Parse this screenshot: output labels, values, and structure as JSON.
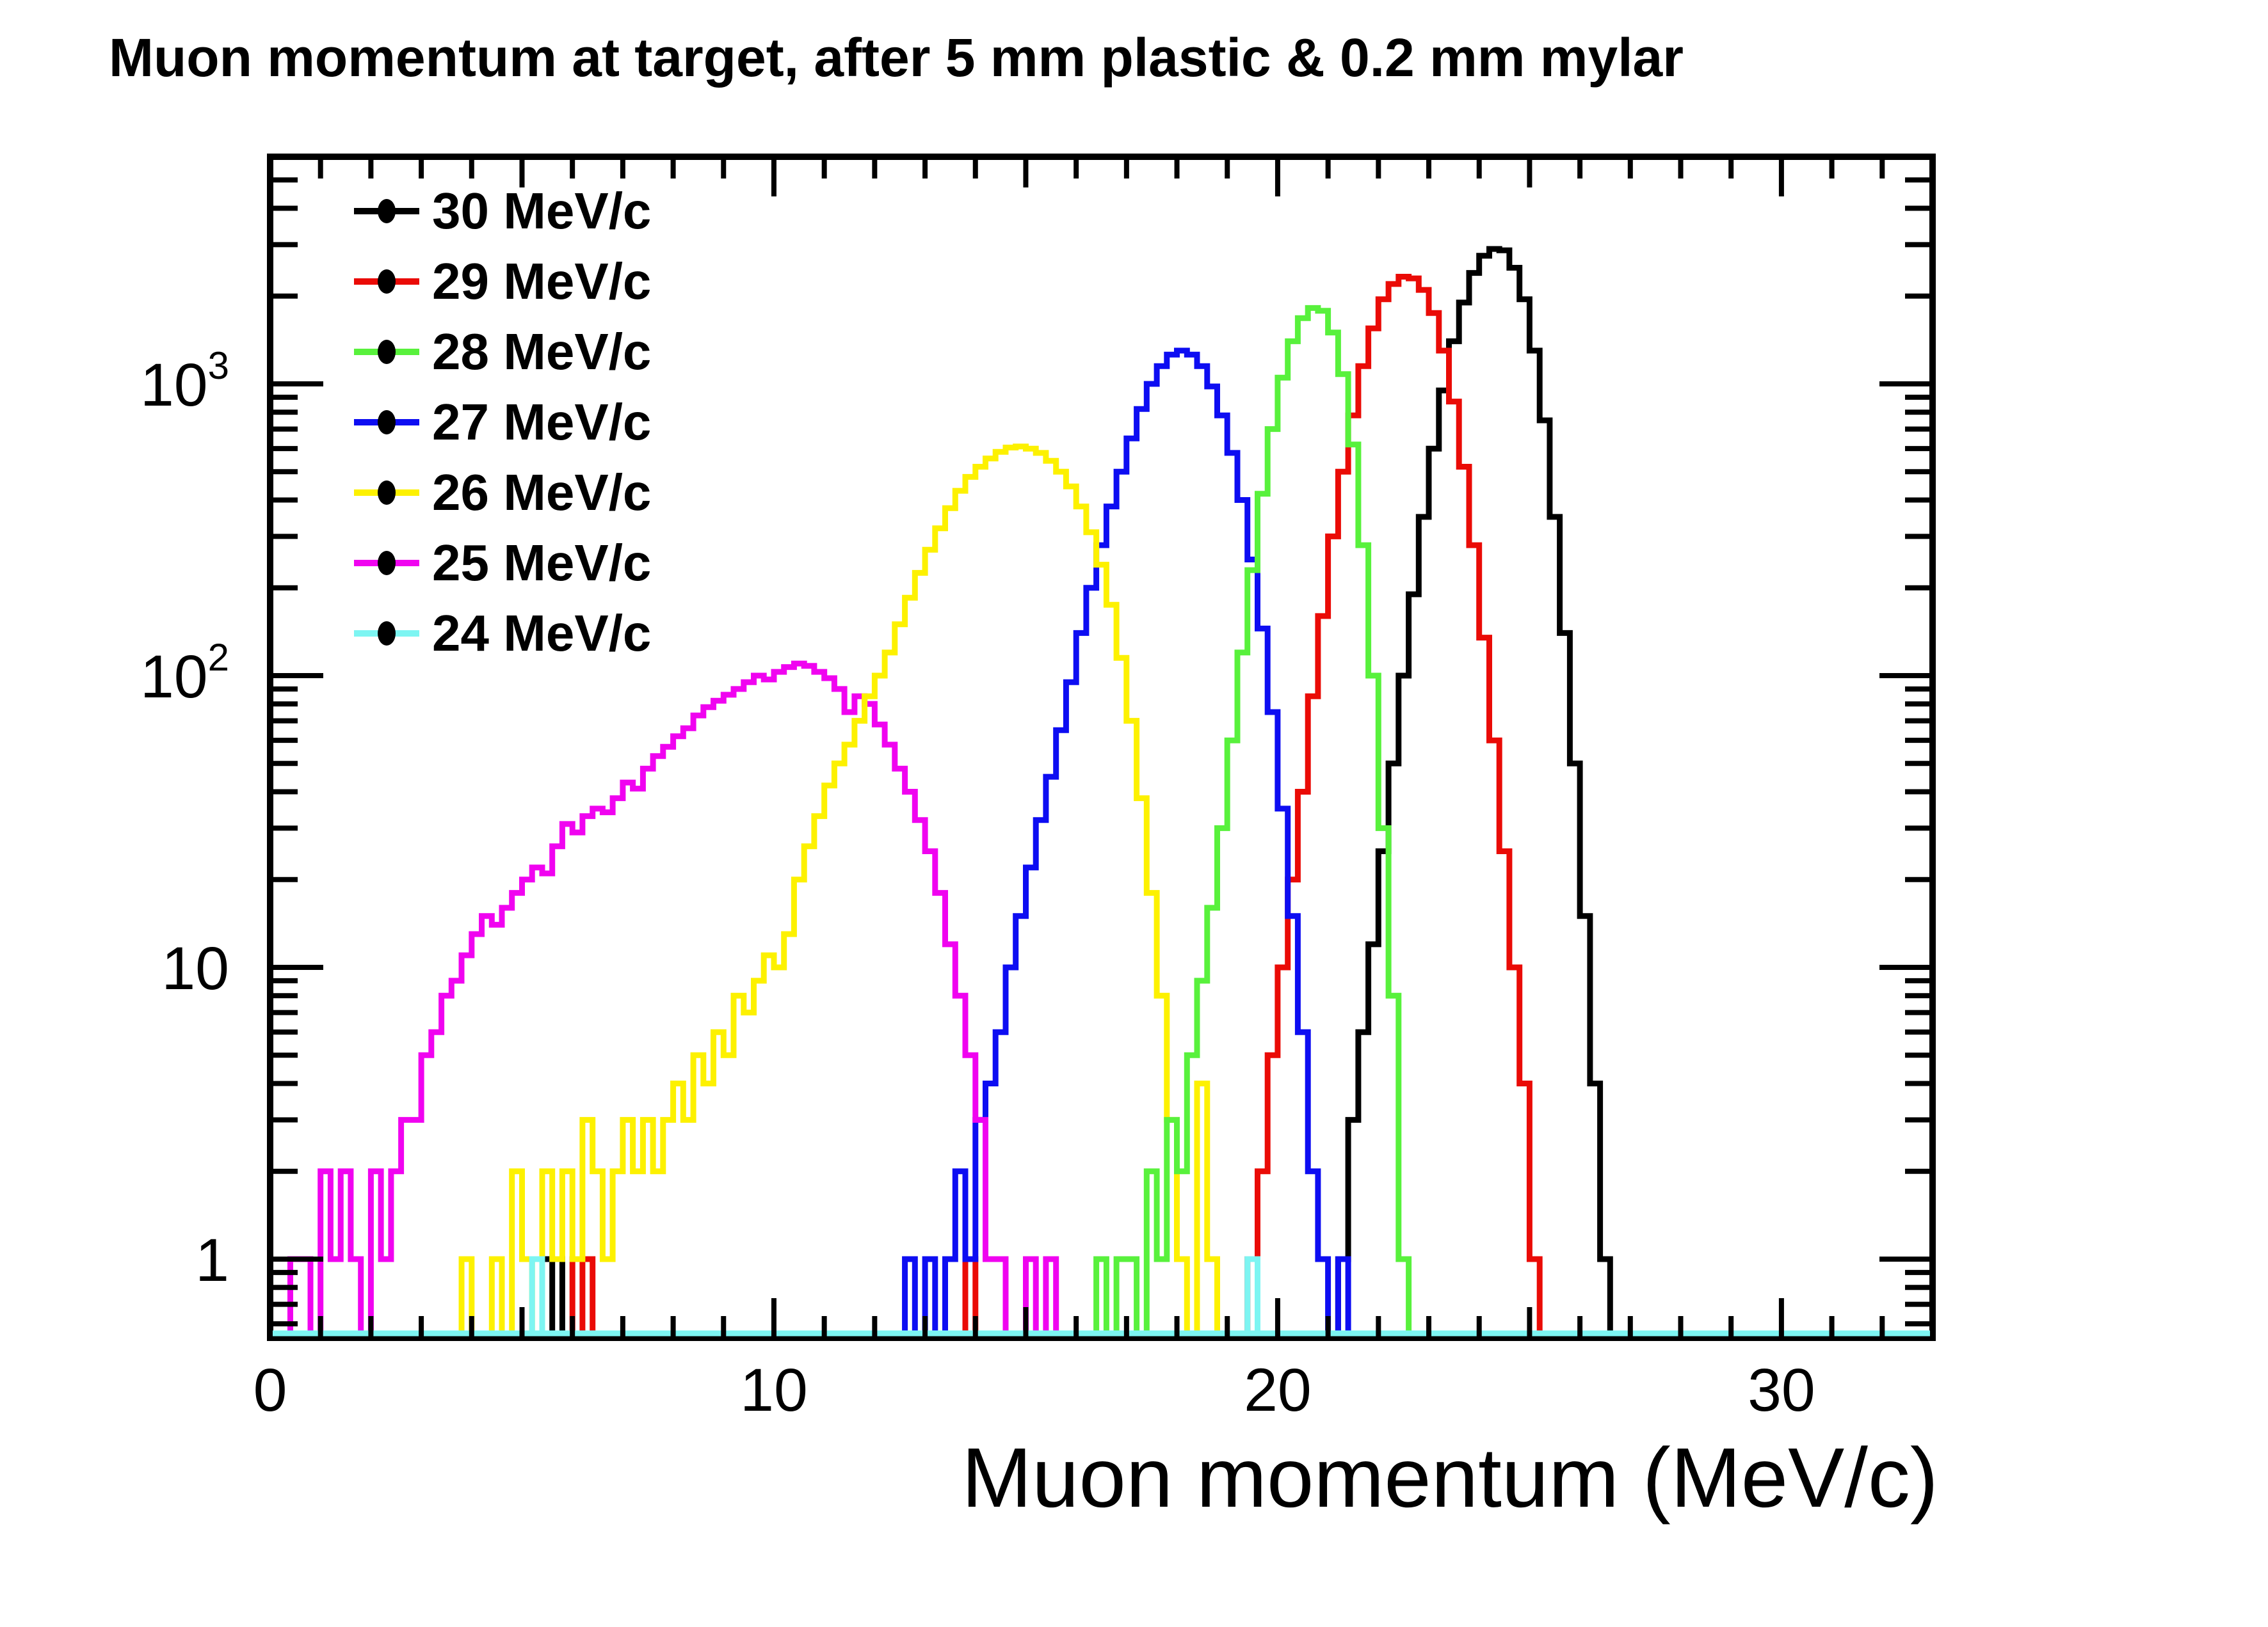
{
  "title": "Muon momentum at target, after 5 mm plastic & 0.2 mm mylar",
  "chart_data": {
    "type": "bar",
    "subtype": "step-histograms-log-y",
    "title": "Muon momentum at target, after 5 mm plastic & 0.2 mm mylar",
    "xlabel": "Muon momentum (MeV/c)",
    "ylabel": "",
    "grid": false,
    "legend_position": "top-left-inside",
    "x_axis": {
      "title": "Muon momentum (MeV/c)",
      "min": 0,
      "max": 33,
      "tick_values": [
        0,
        10,
        20,
        30
      ],
      "tick_labels": [
        "0",
        "10",
        "20",
        "30"
      ],
      "medium_tick_step": 5,
      "minor_tick_step": 1
    },
    "y_axis": {
      "scale": "log",
      "min": 0.54,
      "max": 6000,
      "tick_values": [
        1,
        10,
        100,
        1000
      ],
      "tick_labels": [
        "1",
        "10",
        "10^2",
        "10^3"
      ]
    },
    "legend": [
      {
        "label": "30 MeV/c",
        "color": "#000000"
      },
      {
        "label": "29 MeV/c",
        "color": "#ea0b06"
      },
      {
        "label": "28 MeV/c",
        "color": "#58f13c"
      },
      {
        "label": "27 MeV/c",
        "color": "#0d0df2"
      },
      {
        "label": "26 MeV/c",
        "color": "#fdf100"
      },
      {
        "label": "25 MeV/c",
        "color": "#f003f0"
      },
      {
        "label": "24 MeV/c",
        "color": "#7df5f2"
      }
    ],
    "bin_width": 0.2,
    "series": [
      {
        "name": "30 MeV/c",
        "color": "#000000",
        "x_start": 21.2,
        "values": [
          1,
          3,
          6,
          12,
          25,
          50,
          100,
          190,
          350,
          600,
          950,
          1400,
          1900,
          2400,
          2750,
          2900,
          2870,
          2500,
          1950,
          1300,
          750,
          350,
          140,
          50,
          15,
          4,
          1
        ],
        "spikes": [
          [
            5.4,
            1
          ],
          [
            5.6,
            1
          ]
        ]
      },
      {
        "name": "29 MeV/c",
        "color": "#ea0b06",
        "x_start": 19.4,
        "values": [
          1,
          2,
          5,
          10,
          20,
          40,
          85,
          160,
          300,
          500,
          780,
          1150,
          1550,
          1950,
          2200,
          2330,
          2300,
          2100,
          1750,
          1300,
          870,
          520,
          280,
          135,
          60,
          25,
          10,
          4,
          1
        ],
        "spikes": [
          [
            6.0,
            1
          ],
          [
            6.2,
            1
          ],
          [
            13.8,
            1
          ]
        ]
      },
      {
        "name": "28 MeV/c",
        "color": "#58f13c",
        "x_start": 16.4,
        "values": [
          1,
          0,
          1,
          1,
          0,
          2,
          1,
          3,
          2,
          5,
          9,
          16,
          30,
          60,
          120,
          230,
          420,
          700,
          1050,
          1400,
          1680,
          1820,
          1780,
          1500,
          1080,
          620,
          280,
          100,
          30,
          8,
          1
        ],
        "spikes": []
      },
      {
        "name": "27 MeV/c",
        "color": "#0d0df2",
        "x_start": 12.6,
        "values": [
          1,
          0,
          1,
          0,
          1,
          2,
          1,
          3,
          4,
          6,
          10,
          15,
          22,
          32,
          45,
          65,
          95,
          140,
          200,
          280,
          380,
          500,
          650,
          820,
          1000,
          1150,
          1260,
          1300,
          1260,
          1150,
          980,
          780,
          580,
          400,
          250,
          145,
          75,
          35,
          15,
          6,
          2,
          1
        ],
        "spikes": [
          [
            21.2,
            1
          ]
        ]
      },
      {
        "name": "26 MeV/c",
        "color": "#fdf100",
        "x_start": 3.8,
        "values": [
          1,
          0,
          0,
          1,
          0,
          2,
          1,
          0,
          2,
          1,
          2,
          1,
          3,
          2,
          1,
          2,
          3,
          2,
          3,
          2,
          3,
          4,
          3,
          5,
          4,
          6,
          5,
          8,
          7,
          9,
          11,
          10,
          13,
          20,
          26,
          33,
          42,
          50,
          58,
          70,
          85,
          100,
          120,
          150,
          185,
          225,
          270,
          320,
          375,
          430,
          480,
          520,
          555,
          585,
          605,
          610,
          600,
          580,
          545,
          500,
          445,
          380,
          310,
          240,
          175,
          115,
          70,
          38,
          18,
          8,
          3,
          1,
          0,
          4,
          1
        ],
        "spikes": []
      },
      {
        "name": "25 MeV/c",
        "color": "#f003f0",
        "x_start": 0.4,
        "values": [
          1,
          1,
          0,
          2,
          1,
          2,
          1,
          0,
          2,
          1,
          2,
          3,
          3,
          5,
          6,
          8,
          9,
          11,
          13,
          15,
          14,
          16,
          18,
          20,
          22,
          21,
          26,
          31,
          29,
          33,
          35,
          34,
          38,
          43,
          41,
          48,
          53,
          57,
          62,
          66,
          73,
          78,
          82,
          86,
          90,
          95,
          100,
          97,
          103,
          107,
          110,
          108,
          103,
          98,
          90,
          75,
          85,
          80,
          68,
          58,
          48,
          40,
          32,
          25,
          18,
          12,
          8,
          5,
          3,
          1,
          1,
          0,
          0,
          1,
          0,
          1
        ],
        "spikes": []
      },
      {
        "name": "24 MeV/c",
        "color": "#7df5f2",
        "x_start": 0,
        "values": [],
        "spikes": [
          [
            5.2,
            1
          ],
          [
            19.4,
            1
          ]
        ]
      }
    ],
    "draw_order": [
      0,
      1,
      3,
      5,
      4,
      2,
      6
    ]
  }
}
